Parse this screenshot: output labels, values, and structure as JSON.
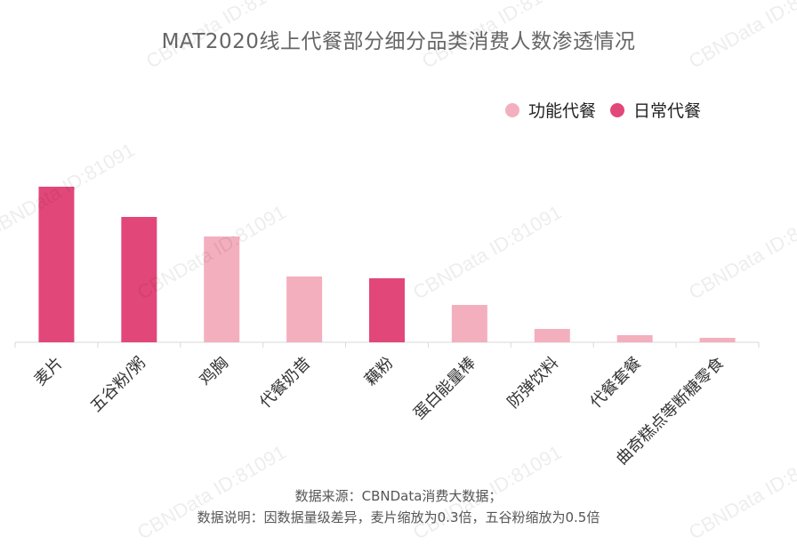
{
  "chart_data": {
    "type": "bar",
    "title": "MAT2020线上代餐部分细分品类消费人数渗透情况",
    "categories": [
      "麦片",
      "五谷粉/粥",
      "鸡胸",
      "代餐奶昔",
      "藕粉",
      "蛋白能量棒",
      "防弹饮料",
      "代餐套餐",
      "曲奇糕点等断糖零食"
    ],
    "series": [
      {
        "name": "功能代餐",
        "color": "#F4AFBE",
        "values": [
          null,
          null,
          1.19,
          0.74,
          null,
          0.42,
          0.15,
          0.08,
          0.05
        ]
      },
      {
        "name": "日常代餐",
        "color": "#E2477A",
        "values": [
          1.75,
          1.41,
          null,
          null,
          0.72,
          null,
          null,
          null,
          null
        ]
      }
    ],
    "legend_position": "top-right",
    "grid": false,
    "ylim": [
      0,
      2
    ]
  },
  "watermark_text": "CBNData ID:81091",
  "footer": {
    "source": "数据来源：CBNData消费大数据；",
    "note": "数据说明：因数据量级差异，麦片缩放为0.3倍，五谷粉缩放为0.5倍"
  }
}
